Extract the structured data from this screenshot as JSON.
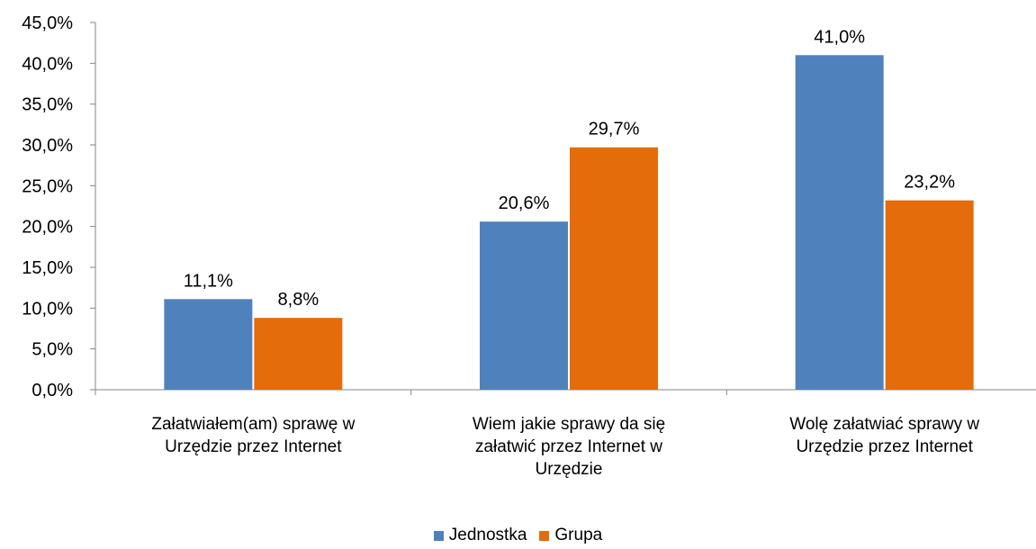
{
  "chart_data": {
    "type": "bar",
    "categories": [
      [
        "Załatwiałem(am) sprawę w",
        "Urzędzie przez Internet"
      ],
      [
        "Wiem jakie sprawy da się",
        "załatwić przez Internet w",
        "Urzędzie"
      ],
      [
        "Wolę załatwiać sprawy w",
        "Urzędzie przez Internet"
      ]
    ],
    "series": [
      {
        "name": "Jednostka",
        "color": "#4f81bd",
        "values": [
          11.1,
          20.6,
          41.0
        ],
        "labels": [
          "11,1%",
          "20,6%",
          "41,0%"
        ]
      },
      {
        "name": "Grupa",
        "color": "#e46c0a",
        "values": [
          8.8,
          29.7,
          23.2
        ],
        "labels": [
          "8,8%",
          "29,7%",
          "23,2%"
        ]
      }
    ],
    "ylim": [
      0,
      45
    ],
    "yticks": [
      "0,0%",
      "5,0%",
      "10,0%",
      "15,0%",
      "20,0%",
      "25,0%",
      "30,0%",
      "35,0%",
      "40,0%",
      "45,0%"
    ],
    "xlabel": "",
    "ylabel": "",
    "title": "",
    "grid": false,
    "legend_position": "bottom"
  }
}
